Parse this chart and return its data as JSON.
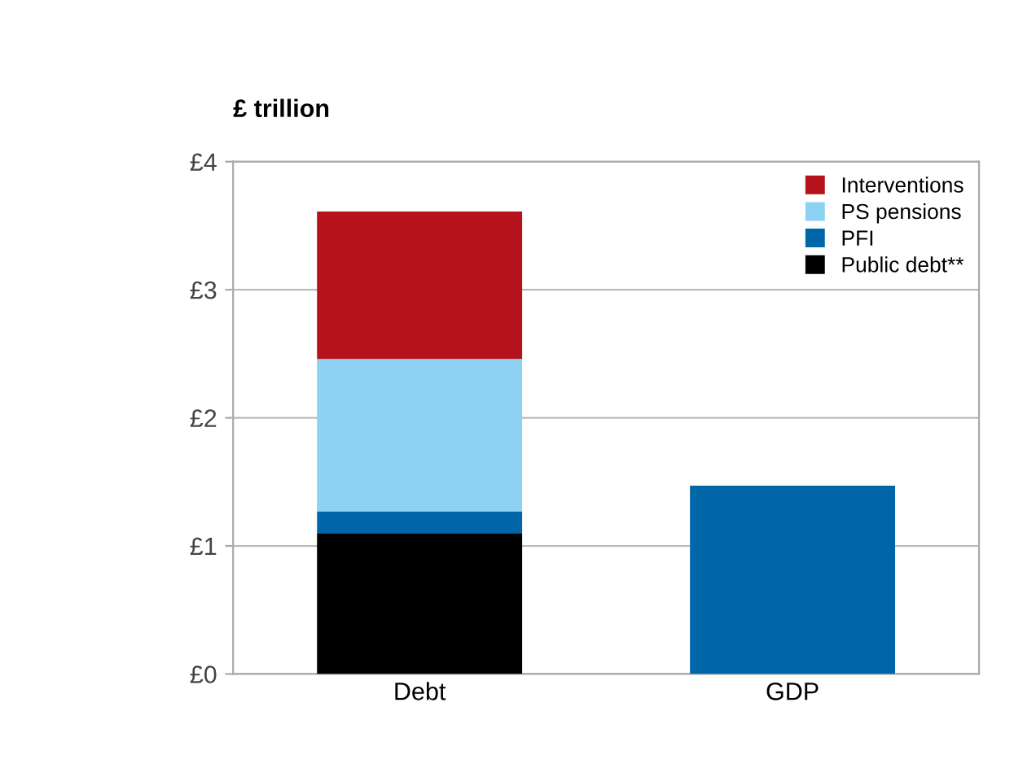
{
  "chart_data": {
    "type": "bar",
    "stacked": true,
    "ylabel": "£ trillion",
    "categories": [
      "Debt",
      "GDP"
    ],
    "series": [
      {
        "name": "Public debt**",
        "color": "#000000",
        "values": [
          1.1,
          null
        ]
      },
      {
        "name": "PFI",
        "color": "#0066a8",
        "values": [
          0.17,
          null
        ]
      },
      {
        "name": "PS pensions",
        "color": "#8dd1f3",
        "values": [
          1.19,
          null
        ]
      },
      {
        "name": "Interventions",
        "color": "#b5121b",
        "values": [
          1.15,
          null
        ]
      },
      {
        "color": "#0066a8",
        "values": [
          null,
          1.47
        ]
      }
    ],
    "ylim": [
      0,
      4
    ],
    "yticks": [
      {
        "value": 0,
        "label": "£0"
      },
      {
        "value": 1,
        "label": "£1"
      },
      {
        "value": 2,
        "label": "£2"
      },
      {
        "value": 3,
        "label": "£3"
      },
      {
        "value": 4,
        "label": "£4"
      }
    ],
    "grid": "y",
    "legend": "top right"
  }
}
